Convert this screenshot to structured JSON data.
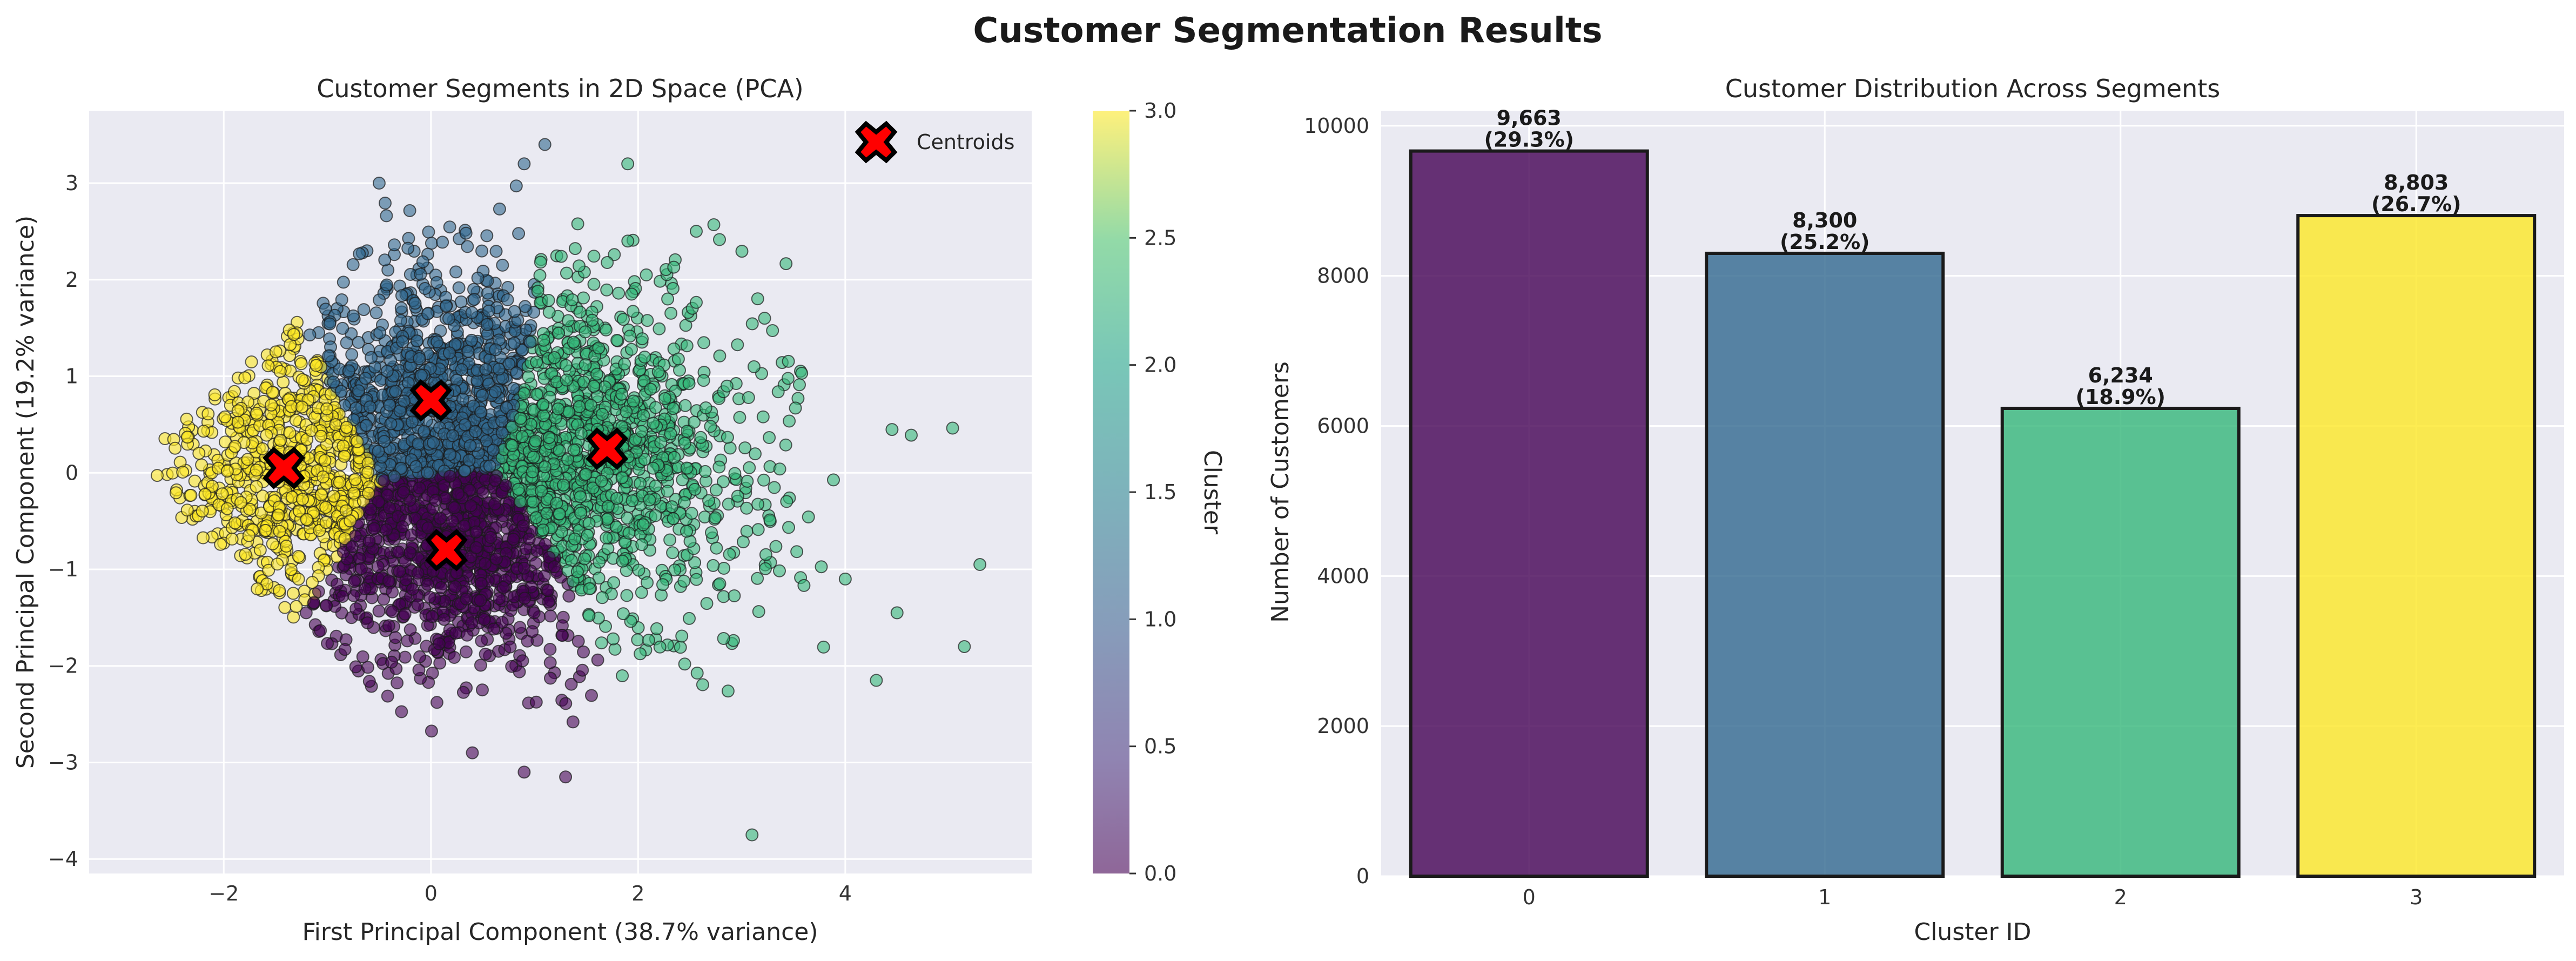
{
  "figure": {
    "title": "Customer Segmentation Results"
  },
  "colors": {
    "panel_bg": "#EAEAF2",
    "grid": "#ffffff",
    "cluster_0": "#440154",
    "cluster_1": "#31688e",
    "cluster_2": "#35b779",
    "cluster_3": "#fde725",
    "centroid": "#ff0000"
  },
  "chart_data": [
    {
      "type": "scatter",
      "title": "Customer Segments in 2D Space (PCA)",
      "xlabel": "First Principal Component (38.7% variance)",
      "ylabel": "Second Principal Component (19.2% variance)",
      "xlim": [
        -3.3,
        5.8
      ],
      "ylim": [
        -4.15,
        3.75
      ],
      "xticks": [
        -2,
        0,
        2,
        4
      ],
      "yticks": [
        -4,
        -3,
        -2,
        -1,
        0,
        1,
        2,
        3
      ],
      "grid": true,
      "legend": {
        "placement": "top-right",
        "entries": [
          "Centroids"
        ]
      },
      "colorbar": {
        "label": "Cluster",
        "range": [
          0.0,
          3.0
        ],
        "ticks": [
          "0.0",
          "0.5",
          "1.0",
          "1.5",
          "2.0",
          "2.5",
          "3.0"
        ]
      },
      "centroids": [
        {
          "cluster": 0,
          "x": 0.15,
          "y": -0.8
        },
        {
          "cluster": 1,
          "x": 0.0,
          "y": 0.75
        },
        {
          "cluster": 2,
          "x": 1.7,
          "y": 0.25
        },
        {
          "cluster": 3,
          "x": -1.42,
          "y": 0.05
        }
      ],
      "cluster_extents": [
        {
          "cluster": 0,
          "x_range": [
            -1.0,
            1.8
          ],
          "y_range": [
            -3.2,
            -0.1
          ],
          "outliers": [
            [
              0.9,
              -3.1
            ],
            [
              1.3,
              -3.15
            ],
            [
              0.4,
              -2.9
            ]
          ]
        },
        {
          "cluster": 1,
          "x_range": [
            -1.3,
            1.4
          ],
          "y_range": [
            0.1,
            3.4
          ],
          "outliers": [
            [
              1.1,
              3.4
            ],
            [
              0.9,
              3.2
            ],
            [
              -0.5,
              3.0
            ]
          ]
        },
        {
          "cluster": 2,
          "x_range": [
            0.8,
            4.8
          ],
          "y_range": [
            -2.5,
            3.2
          ],
          "outliers": [
            [
              1.9,
              3.2
            ],
            [
              5.3,
              -0.95
            ],
            [
              5.15,
              -1.8
            ],
            [
              4.5,
              -1.45
            ],
            [
              4.3,
              -2.15
            ],
            [
              3.1,
              -3.75
            ],
            [
              4.0,
              -1.1
            ]
          ]
        },
        {
          "cluster": 3,
          "x_range": [
            -2.9,
            -0.3
          ],
          "y_range": [
            -1.4,
            1.9
          ],
          "outliers": []
        }
      ]
    },
    {
      "type": "bar",
      "title": "Customer Distribution Across Segments",
      "xlabel": "Cluster ID",
      "ylabel": "Number of Customers",
      "categories": [
        "0",
        "1",
        "2",
        "3"
      ],
      "values": [
        9663,
        8300,
        6234,
        8803
      ],
      "labels": [
        "9,663",
        "8,300",
        "6,234",
        "8,803"
      ],
      "percent_labels": [
        "(29.3%)",
        "(25.2%)",
        "(18.9%)",
        "(26.7%)"
      ],
      "ylim": [
        0,
        10200
      ],
      "yticks": [
        0,
        2000,
        4000,
        6000,
        8000,
        10000
      ],
      "grid": true
    }
  ]
}
